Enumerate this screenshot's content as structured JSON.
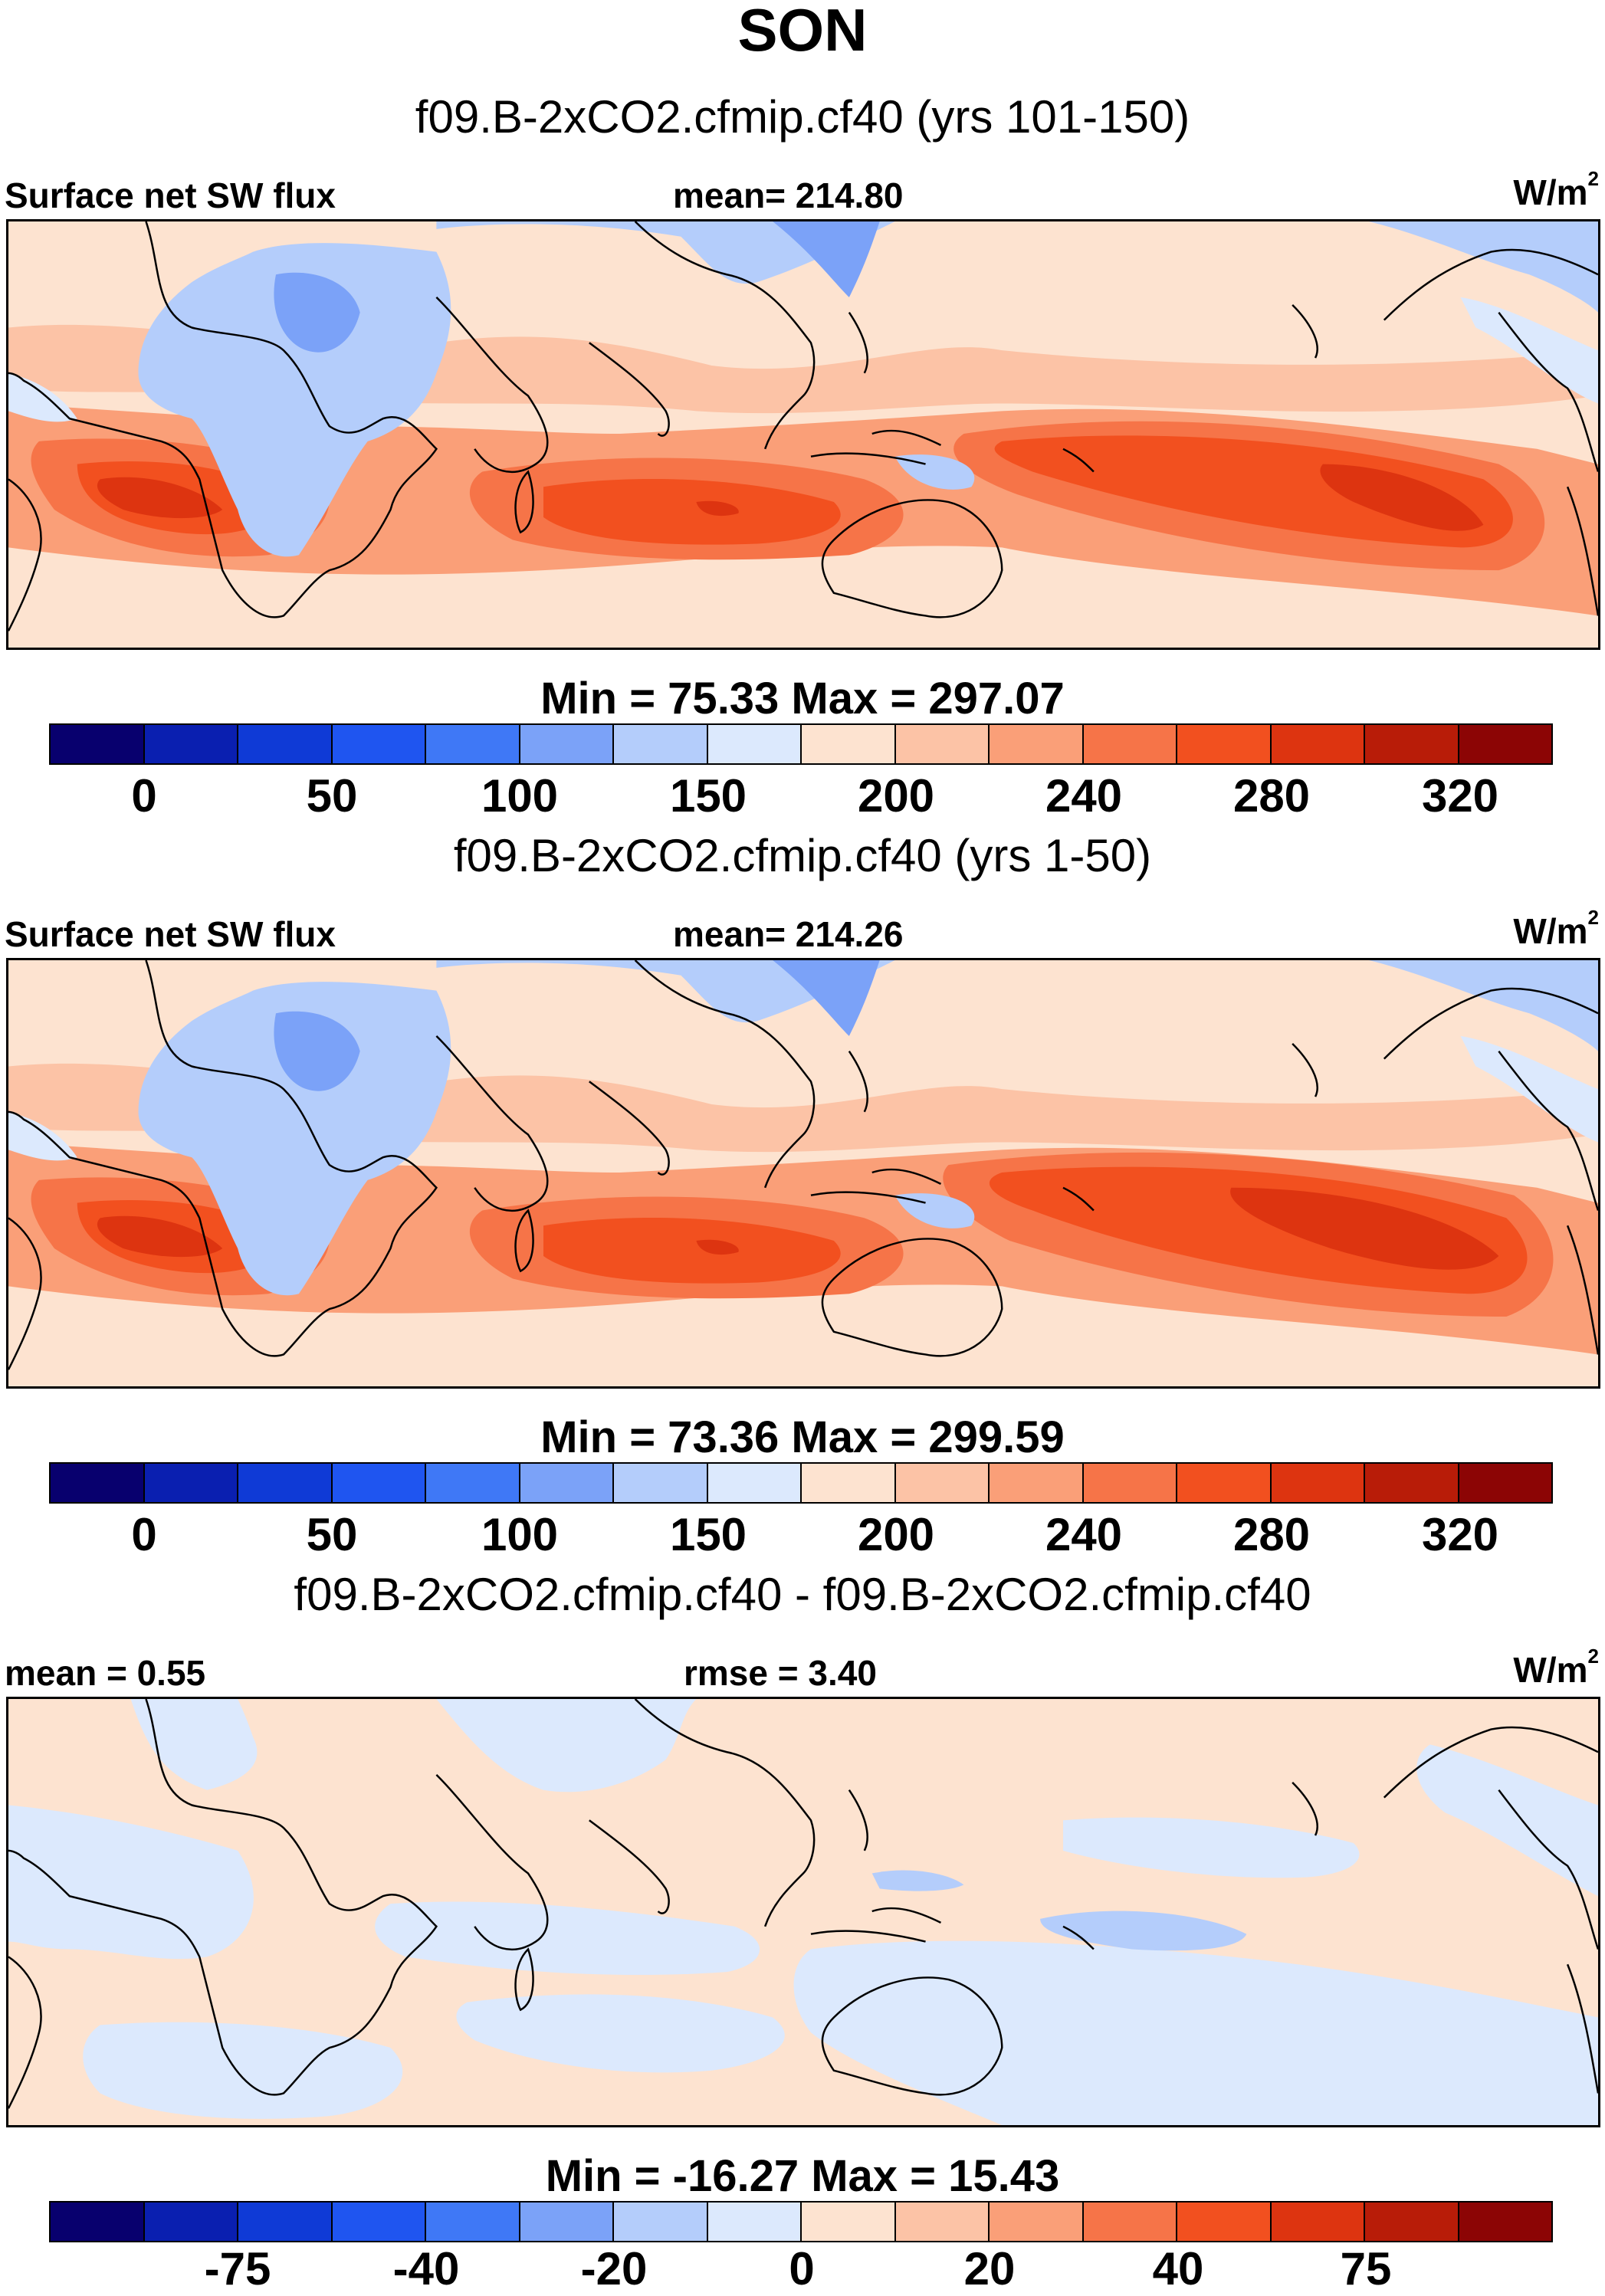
{
  "title": "SON",
  "panels": [
    {
      "case_label": "f09.B-2xCO2.cfmip.cf40 (yrs 101-150)",
      "left_label": "Surface net SW flux",
      "center_label": "mean= 214.80",
      "units": "W/m",
      "units_sup": "2",
      "minmax": "Min =  75.33 Max = 297.07",
      "colorbar_ticks": [
        "0",
        "50",
        "100",
        "150",
        "200",
        "240",
        "280",
        "320"
      ]
    },
    {
      "case_label": "f09.B-2xCO2.cfmip.cf40 (yrs 1-50)",
      "left_label": "Surface net SW flux",
      "center_label": "mean= 214.26",
      "units": "W/m",
      "units_sup": "2",
      "minmax": "Min =  73.36 Max = 299.59",
      "colorbar_ticks": [
        "0",
        "50",
        "100",
        "150",
        "200",
        "240",
        "280",
        "320"
      ]
    },
    {
      "case_label": "f09.B-2xCO2.cfmip.cf40 - f09.B-2xCO2.cfmip.cf40",
      "left_label": "mean =   0.55",
      "center_label": "rmse =   3.40",
      "units": "W/m",
      "units_sup": "2",
      "minmax": "Min = -16.27 Max =  15.43",
      "colorbar_ticks": [
        "-75",
        "-40",
        "-20",
        "0",
        "20",
        "40",
        "75"
      ]
    }
  ],
  "colorbar_colors": [
    "#08006e",
    "#0a1fb0",
    "#0f3ad6",
    "#1f55f0",
    "#3f78f6",
    "#7ba2f8",
    "#b4cdfb",
    "#dce9fd",
    "#fde3d0",
    "#fcc3a6",
    "#fa9f78",
    "#f67448",
    "#f2501f",
    "#dd3410",
    "#b81c08",
    "#8c0505"
  ]
}
